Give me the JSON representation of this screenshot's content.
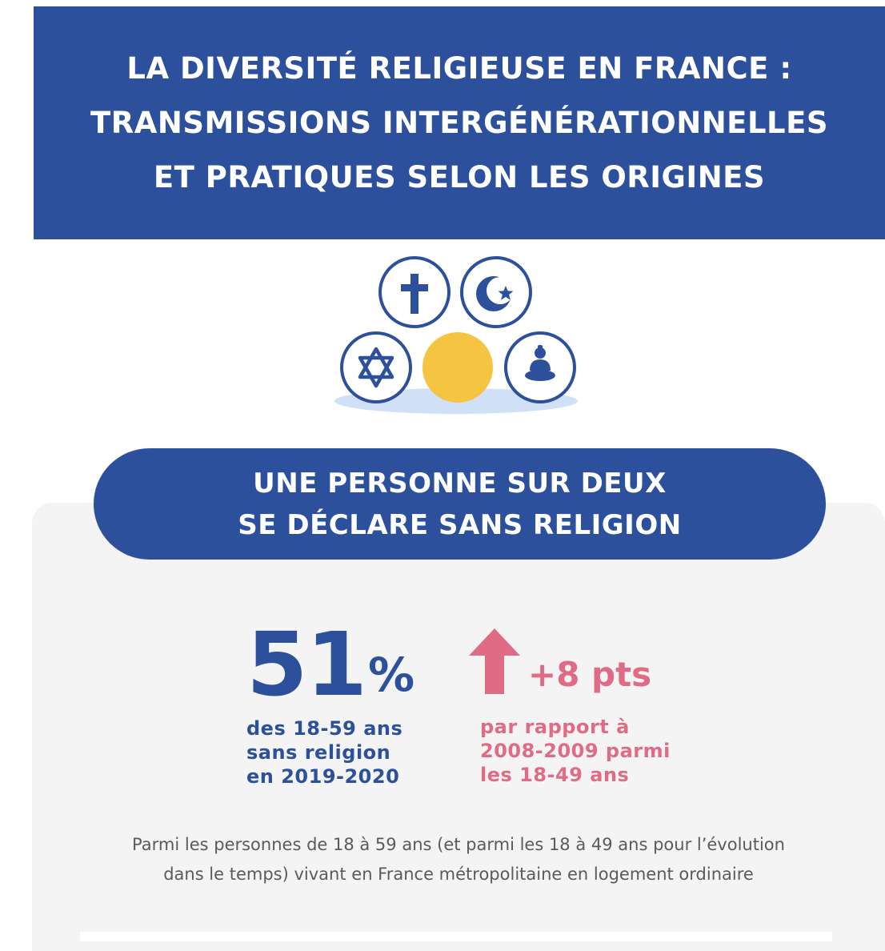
{
  "header": {
    "title_lines": [
      "LA DIVERSITÉ RELIGIEUSE EN FRANCE :",
      "TRANSMISSIONS INTERGÉNÉRATIONNELLES",
      "ET PRATIQUES SELON LES ORIGINES"
    ]
  },
  "icons": {
    "items": [
      "cross-icon",
      "crescent-star-icon",
      "star-of-david-icon",
      "sun-icon",
      "buddha-icon"
    ]
  },
  "headline": {
    "lines": [
      "UNE PERSONNE SUR DEUX",
      "SE DÉCLARE SANS RELIGION"
    ]
  },
  "stat": {
    "value": "51",
    "unit": "%",
    "desc_lines": [
      "des 18-59 ans",
      "sans religion",
      "en 2019-2020"
    ]
  },
  "change": {
    "value": "+8 pts",
    "desc_lines": [
      "par rapport à",
      "2008-2009 parmi",
      "les 18-49 ans"
    ]
  },
  "footnote": {
    "lines": [
      "Parmi les personnes de 18 à 59 ans (et parmi les 18 à 49 ans pour l’évolution",
      "dans le temps) vivant en France métropolitaine en logement ordinaire"
    ]
  },
  "colors": {
    "primary_blue": "#2c509b",
    "accent_pink": "#e06b84",
    "sun_yellow": "#f5c542",
    "panel_gray": "#f4f4f4",
    "shadow_blue": "#cfe0f7"
  }
}
